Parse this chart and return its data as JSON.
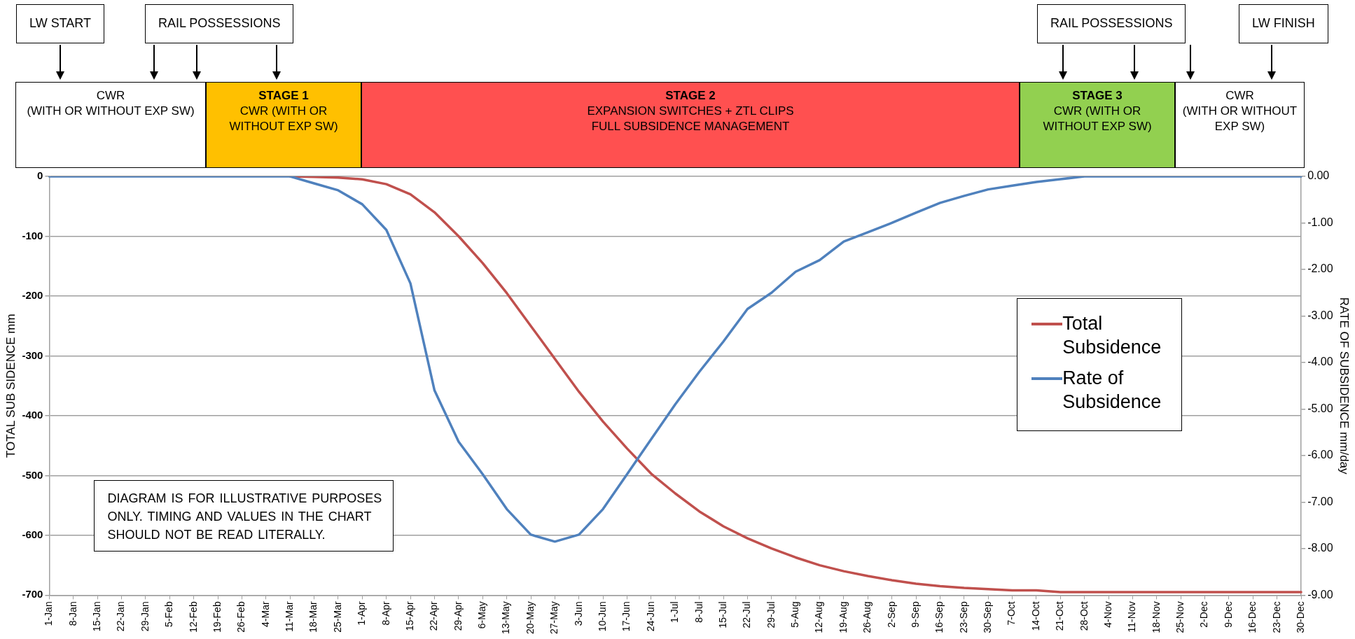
{
  "chart_data": {
    "type": "line",
    "ylabel": "TOTAL SUB SIDENCE mm",
    "y2label": "RATE OF SUBSIDENCE mm/day",
    "categories": [
      "1-Jan",
      "8-Jan",
      "15-Jan",
      "22-Jan",
      "29-Jan",
      "5-Feb",
      "12-Feb",
      "19-Feb",
      "26-Feb",
      "4-Mar",
      "11-Mar",
      "18-Mar",
      "25-Mar",
      "1-Apr",
      "8-Apr",
      "15-Apr",
      "22-Apr",
      "29-Apr",
      "6-May",
      "13-May",
      "20-May",
      "27-May",
      "3-Jun",
      "10-Jun",
      "17-Jun",
      "24-Jun",
      "1-Jul",
      "8-Jul",
      "15-Jul",
      "22-Jul",
      "29-Jul",
      "5-Aug",
      "12-Aug",
      "19-Aug",
      "26-Aug",
      "2-Sep",
      "9-Sep",
      "16-Sep",
      "23-Sep",
      "30-Sep",
      "7-Oct",
      "14-Oct",
      "21-Oct",
      "28-Oct",
      "4-Nov",
      "11-Nov",
      "18-Nov",
      "25-Nov",
      "2-Dec",
      "9-Dec",
      "16-Dec",
      "23-Dec",
      "30-Dec"
    ],
    "series": [
      {
        "name": "Total Subsidence",
        "color": "#c0504d",
        "values": [
          null,
          null,
          null,
          null,
          null,
          null,
          null,
          null,
          null,
          null,
          0,
          -1,
          -2,
          -5,
          -13,
          -30,
          -60,
          -100,
          -145,
          -195,
          -250,
          -305,
          -360,
          -410,
          -455,
          -497,
          -530,
          -560,
          -585,
          -605,
          -622,
          -637,
          -650,
          -660,
          -668,
          -675,
          -681,
          -685,
          -688,
          -690,
          -692,
          -692,
          -695,
          -695,
          -695,
          -695,
          -695,
          -695,
          -695,
          -695,
          -695,
          -695,
          -695
        ]
      },
      {
        "name": "Rate of Subsidence",
        "color": "#4f81bd",
        "axis": "y2",
        "values": [
          0,
          0,
          0,
          0,
          0,
          0,
          0,
          0,
          0,
          0,
          0,
          -0.15,
          -0.3,
          -0.6,
          -1.15,
          -2.3,
          -4.6,
          -5.7,
          -6.4,
          -7.15,
          -7.7,
          -7.85,
          -7.7,
          -7.15,
          -6.4,
          -5.65,
          -4.9,
          -4.2,
          -3.55,
          -2.85,
          -2.5,
          -2.05,
          -1.8,
          -1.4,
          -1.2,
          -1.0,
          -0.78,
          -0.57,
          -0.42,
          -0.28,
          -0.2,
          -0.12,
          -0.06,
          0,
          0,
          0,
          0,
          0,
          0,
          0,
          0,
          0,
          0
        ]
      }
    ],
    "ylim": [
      -700,
      0
    ],
    "yticks": [
      -700,
      -600,
      -500,
      -400,
      -300,
      -200,
      -100,
      0
    ],
    "y2lim": [
      -9,
      0
    ],
    "y2ticks": [
      {
        "value": -9,
        "label": "-9.00"
      },
      {
        "value": -8,
        "label": "-8.00"
      },
      {
        "value": -7,
        "label": "-7.00"
      },
      {
        "value": -6,
        "label": "-6.00"
      },
      {
        "value": -5,
        "label": "-5.00"
      },
      {
        "value": -4,
        "label": "-4.00"
      },
      {
        "value": -3,
        "label": "-3.00"
      },
      {
        "value": -2,
        "label": "-2.00"
      },
      {
        "value": -1,
        "label": "-1.00"
      },
      {
        "value": 0,
        "label": "0.00"
      }
    ],
    "grid": "y",
    "legend": "right",
    "marker": "none",
    "line_style": "solid",
    "annotations": [
      "LW START",
      "RAIL POSSESSIONS",
      "RAIL POSSESSIONS",
      "LW FINISH",
      "CWR\n(WITH OR WITHOUT EXP SW)",
      "STAGE 1\nCWR (WITH OR WITHOUT EXP SW)",
      "STAGE 2\nEXPANSION SWITCHES + ZTL CLIPS\nFULL SUBSIDENCE  MANAGEMENT",
      "STAGE 3\nCWR (WITH OR WITHOUT EXP SW)",
      "CWR\n(WITH OR WITHOUT EXP SW)",
      "DIAGRAM IS FOR ILLUSTRATIVE PURPOSES ONLY.  TIMING  AND VALUES IN THE CHART SHOULD NOT BE READ LITERALLY."
    ]
  }
}
